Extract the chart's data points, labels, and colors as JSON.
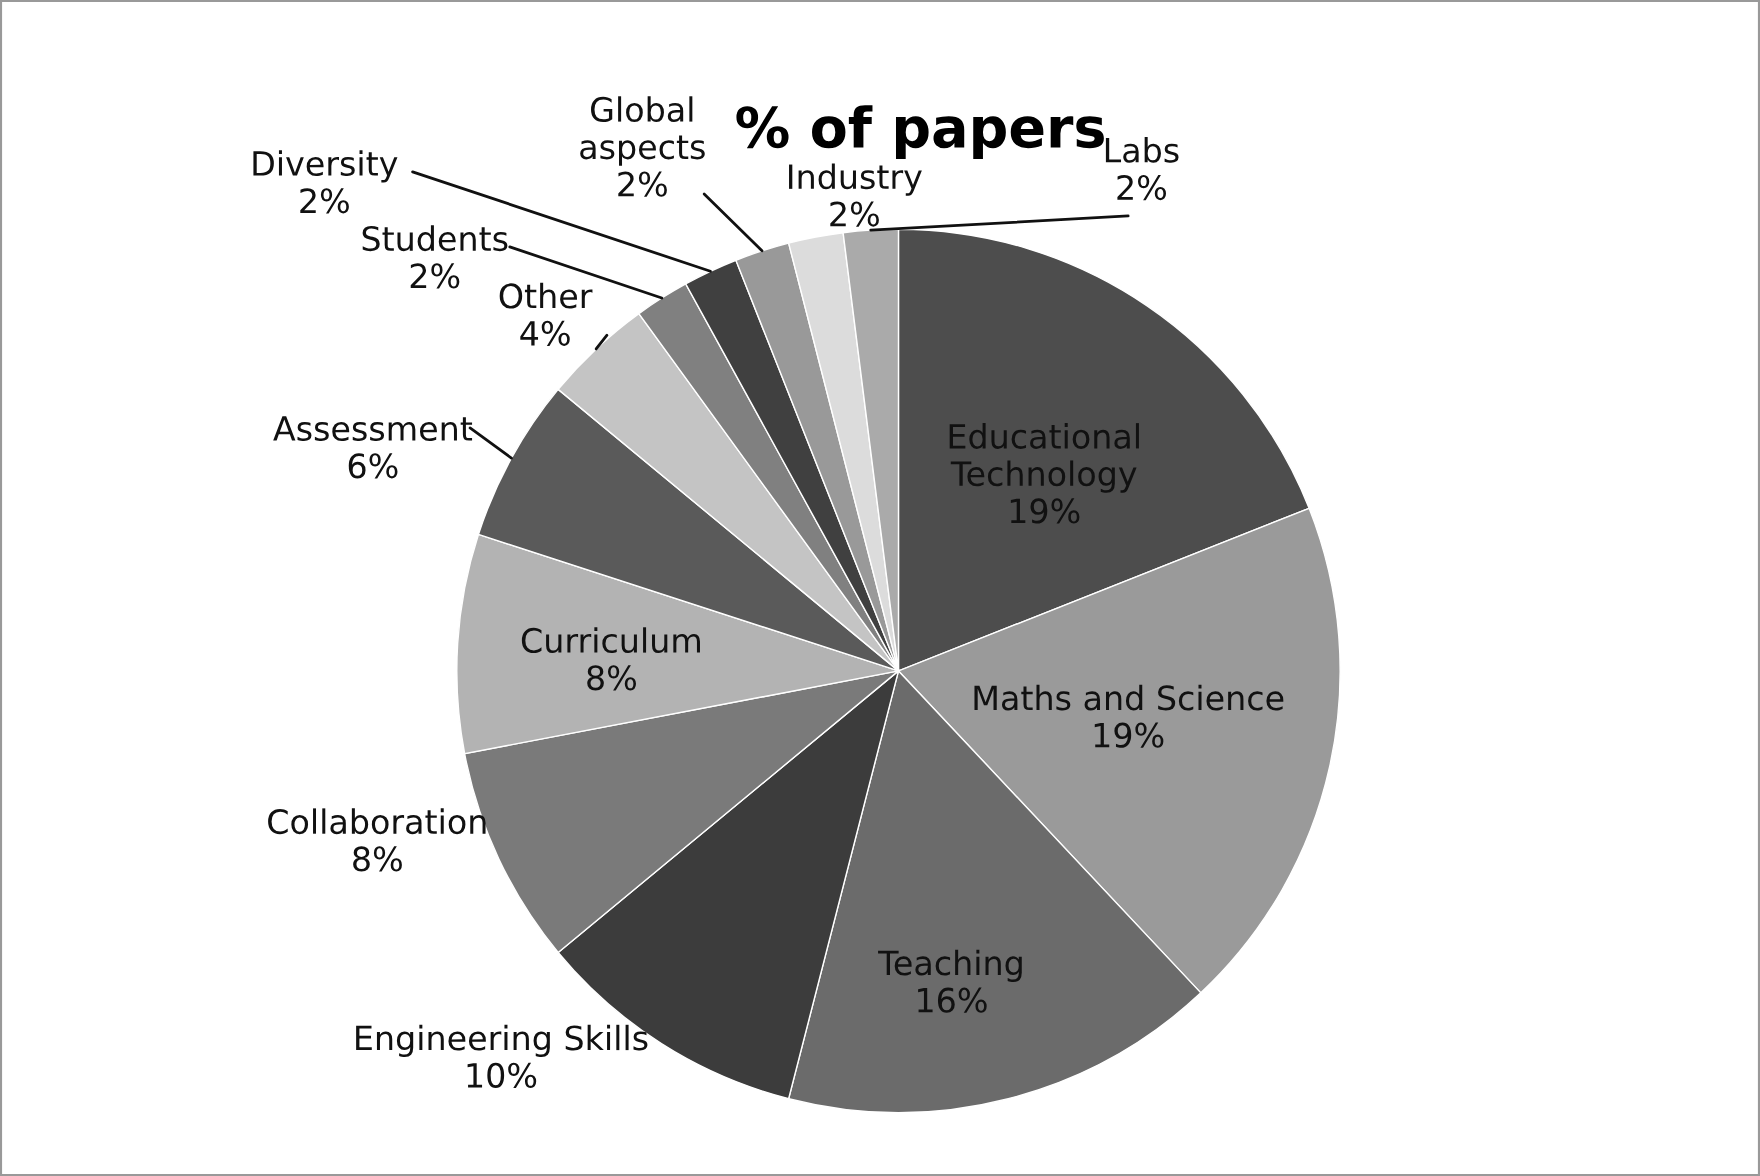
{
  "chart_data": {
    "type": "pie",
    "title": "% of papers",
    "categories": [
      "Educational Technology",
      "Maths and Science",
      "Teaching",
      "Engineering Skills",
      "Collaboration",
      "Curriculum",
      "Assessment",
      "Other",
      "Students",
      "Diversity",
      "Global aspects",
      "Industry",
      "Labs"
    ],
    "values": [
      19,
      19,
      16,
      10,
      8,
      8,
      6,
      4,
      2,
      2,
      2,
      2,
      2
    ],
    "value_labels": [
      "19%",
      "19%",
      "16%",
      "10%",
      "8%",
      "8%",
      "6%",
      "4%",
      "2%",
      "2%",
      "2%",
      "2%",
      "2%"
    ],
    "colors": [
      "#4d4d4d",
      "#9a9a9a",
      "#6b6b6b",
      "#3c3c3c",
      "#7a7a7a",
      "#b3b3b3",
      "#5a5a5a",
      "#c4c4c4",
      "#808080",
      "#404040",
      "#999999",
      "#dcdcdc",
      "#aaaaaa"
    ],
    "legend": false
  }
}
